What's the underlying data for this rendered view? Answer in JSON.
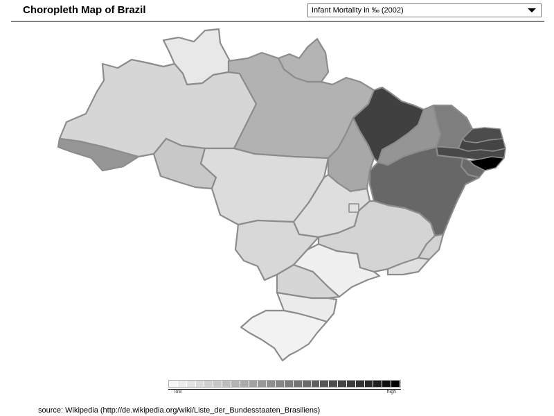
{
  "header": {
    "title": "Choropleth Map of Brazil",
    "dropdown_value": "Infant Mortality in ‰ (2002)"
  },
  "map": {
    "metric": "Infant Mortality in ‰ (2002)",
    "states": [
      {
        "id": "roraima",
        "shade": "#e8e8e8"
      },
      {
        "id": "amapa",
        "shade": "#b4b4b4"
      },
      {
        "id": "amazonas",
        "shade": "#d6d6d6"
      },
      {
        "id": "para",
        "shade": "#b2b2b2"
      },
      {
        "id": "acre",
        "shade": "#969696"
      },
      {
        "id": "rondonia",
        "shade": "#c8c8c8"
      },
      {
        "id": "mato-grosso",
        "shade": "#dcdcdc"
      },
      {
        "id": "tocantins",
        "shade": "#a8a8a8"
      },
      {
        "id": "maranhao",
        "shade": "#404040"
      },
      {
        "id": "piaui",
        "shade": "#959595"
      },
      {
        "id": "ceara",
        "shade": "#7e7e7e"
      },
      {
        "id": "rio-grande-do-norte",
        "shade": "#4c4c4c"
      },
      {
        "id": "paraiba",
        "shade": "#444444"
      },
      {
        "id": "pernambuco",
        "shade": "#484848"
      },
      {
        "id": "alagoas",
        "shade": "#000000"
      },
      {
        "id": "sergipe",
        "shade": "#6a6a6a"
      },
      {
        "id": "bahia",
        "shade": "#676767"
      },
      {
        "id": "goias",
        "shade": "#dedede"
      },
      {
        "id": "distrito-federal",
        "shade": "#e2e2e2"
      },
      {
        "id": "mato-grosso-do-sul",
        "shade": "#d8d8d8"
      },
      {
        "id": "minas-gerais",
        "shade": "#d4d4d4"
      },
      {
        "id": "espirito-santo",
        "shade": "#d2d2d2"
      },
      {
        "id": "rio-de-janeiro",
        "shade": "#e0e0e0"
      },
      {
        "id": "sao-paulo",
        "shade": "#f0f0f0"
      },
      {
        "id": "parana",
        "shade": "#d6d6d6"
      },
      {
        "id": "santa-catarina",
        "shade": "#ececec"
      },
      {
        "id": "rio-grande-do-sul",
        "shade": "#f2f2f2"
      }
    ]
  },
  "legend": {
    "low_label": "low",
    "high_label": "high",
    "swatches": [
      "#f6f6f6",
      "#ececec",
      "#e3e3e3",
      "#dadada",
      "#d0d0d0",
      "#c7c7c7",
      "#bebebe",
      "#b4b4b4",
      "#ababab",
      "#a2a2a2",
      "#989898",
      "#8f8f8f",
      "#868686",
      "#7c7c7c",
      "#737373",
      "#6a6a6a",
      "#606060",
      "#575757",
      "#4e4e4e",
      "#444444",
      "#3b3b3b",
      "#323232",
      "#282828",
      "#1f1f1f",
      "#101010",
      "#000000"
    ]
  },
  "footer": {
    "source": "source:  Wikipedia (http://de.wikipedia.org/wiki/Liste_der_Bundesstaaten_Brasiliens)"
  }
}
